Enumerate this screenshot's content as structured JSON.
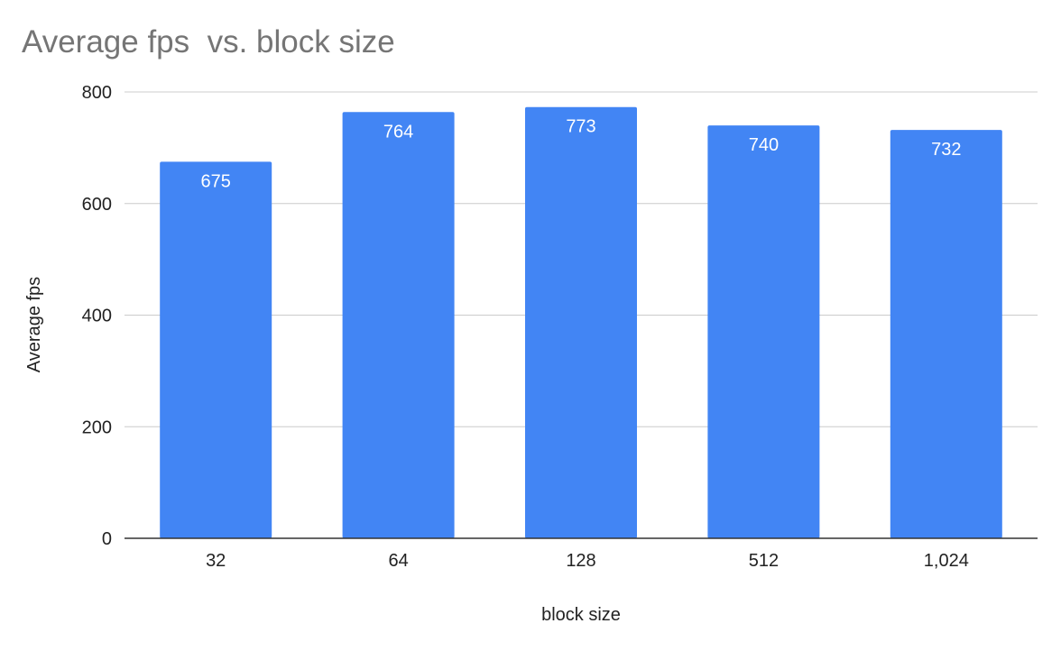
{
  "chart_data": {
    "type": "bar",
    "title": "Average fps  vs. block size",
    "xlabel": "block size",
    "ylabel": "Average fps",
    "categories": [
      "32",
      "64",
      "128",
      "512",
      "1,024"
    ],
    "values": [
      675,
      764,
      773,
      740,
      732
    ],
    "data_labels": [
      "675",
      "764",
      "773",
      "740",
      "732"
    ],
    "ylim": [
      0,
      800
    ],
    "yticks": [
      0,
      200,
      400,
      600,
      800
    ],
    "ytick_labels": [
      "0",
      "200",
      "400",
      "600",
      "800"
    ],
    "grid": true,
    "legend": "none",
    "bar_color": "#4285f4"
  }
}
